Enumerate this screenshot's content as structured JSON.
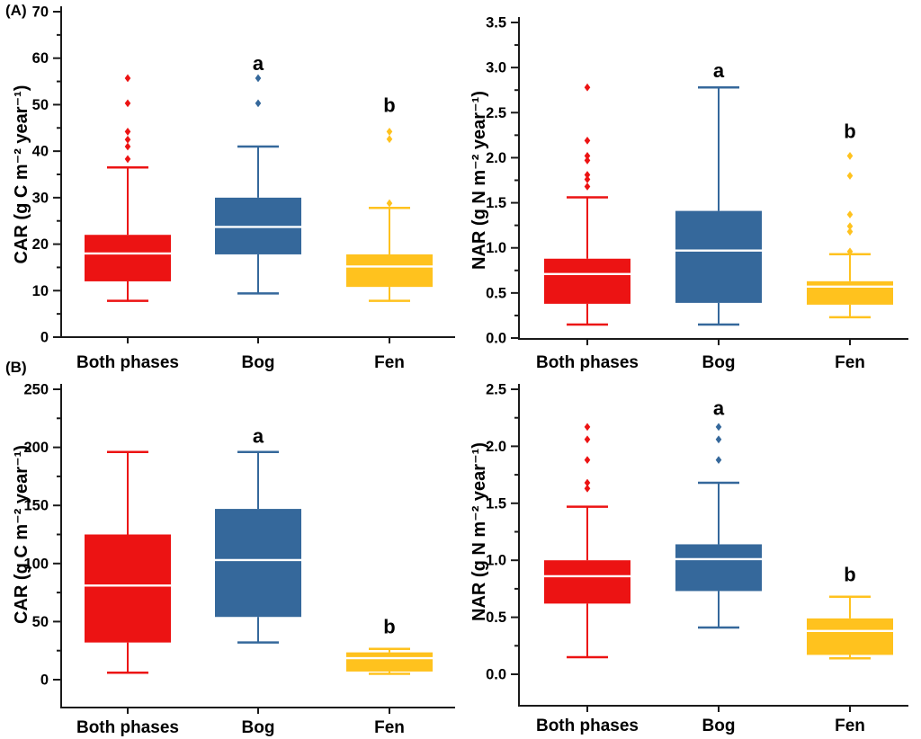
{
  "figure": {
    "background": "#ffffff",
    "text_color": "#000000",
    "axis_color": "#1a1a1a",
    "median_line_color": "#ffffff",
    "panel_labels": [
      "(A)",
      "(B)"
    ]
  },
  "chart_data": [
    {
      "id": "car-upper",
      "panel": "(A)",
      "type": "box",
      "ylabel": "CAR (g C m⁻² year⁻¹)",
      "ylim": [
        0,
        70
      ],
      "yticks": [
        "0",
        "10",
        "20",
        "30",
        "40",
        "50",
        "60",
        "70"
      ],
      "categories": [
        "Both phases",
        "Bog",
        "Fen"
      ],
      "grid": false,
      "legend": "none",
      "series": [
        {
          "name": "Both phases",
          "color": "#EC1313",
          "whisker_low": 7.8,
          "q1": 12,
          "median": 18,
          "q3": 22,
          "whisker_high": 36.5,
          "outliers": [
            38.3,
            41,
            42.5,
            44.2,
            50.3,
            55.7
          ],
          "letter": "",
          "letter_y": null
        },
        {
          "name": "Bog",
          "color": "#35689B",
          "whisker_low": 9.4,
          "q1": 17.8,
          "median": 23.7,
          "q3": 30,
          "whisker_high": 41,
          "outliers": [
            50.3,
            55.7
          ],
          "letter": "a",
          "letter_y": 59
        },
        {
          "name": "Fen",
          "color": "#FFC21E",
          "whisker_low": 7.8,
          "q1": 10.8,
          "median": 15.2,
          "q3": 17.8,
          "whisker_high": 27.8,
          "outliers": [
            28.8,
            42.6,
            44.2
          ],
          "letter": "b",
          "letter_y": 50
        }
      ]
    },
    {
      "id": "nar-upper",
      "panel": "(A)",
      "type": "box",
      "ylabel": "NAR (g N m⁻² year⁻¹)",
      "ylim": [
        0,
        3.5
      ],
      "yticks": [
        "0.0",
        "0.5",
        "1.0",
        "1.5",
        "2.0",
        "2.5",
        "3.0",
        "3.5"
      ],
      "categories": [
        "Both phases",
        "Bog",
        "Fen"
      ],
      "grid": false,
      "legend": "none",
      "series": [
        {
          "name": "Both phases",
          "color": "#EC1313",
          "whisker_low": 0.15,
          "q1": 0.38,
          "median": 0.71,
          "q3": 0.88,
          "whisker_high": 1.56,
          "outliers": [
            1.68,
            1.76,
            1.81,
            1.97,
            2.02,
            2.19,
            2.78
          ],
          "letter": "",
          "letter_y": null
        },
        {
          "name": "Bog",
          "color": "#35689B",
          "whisker_low": 0.15,
          "q1": 0.39,
          "median": 0.97,
          "q3": 1.41,
          "whisker_high": 2.78,
          "outliers": [],
          "letter": "a",
          "letter_y": 2.97
        },
        {
          "name": "Fen",
          "color": "#FFC21E",
          "whisker_low": 0.23,
          "q1": 0.37,
          "median": 0.57,
          "q3": 0.63,
          "whisker_high": 0.93,
          "outliers": [
            0.96,
            1.18,
            1.24,
            1.37,
            1.8,
            2.02
          ],
          "letter": "b",
          "letter_y": 2.3
        }
      ]
    },
    {
      "id": "car-lower",
      "panel": "(B)",
      "type": "box",
      "ylabel": "CAR (g C m⁻² year⁻¹)",
      "ylim": [
        0,
        250
      ],
      "yticks": [
        "0",
        "50",
        "100",
        "150",
        "200",
        "250"
      ],
      "categories": [
        "Both phases",
        "Bog",
        "Fen"
      ],
      "grid": false,
      "legend": "none",
      "series": [
        {
          "name": "Both phases",
          "color": "#EC1313",
          "whisker_low": 6,
          "q1": 32,
          "median": 81,
          "q3": 125,
          "whisker_high": 196,
          "outliers": [],
          "letter": "",
          "letter_y": null
        },
        {
          "name": "Bog",
          "color": "#35689B",
          "whisker_low": 32,
          "q1": 54,
          "median": 103,
          "q3": 147,
          "whisker_high": 196,
          "outliers": [],
          "letter": "a",
          "letter_y": 210
        },
        {
          "name": "Fen",
          "color": "#FFC21E",
          "whisker_low": 5,
          "q1": 7,
          "median": 18.5,
          "q3": 23.5,
          "whisker_high": 26.5,
          "outliers": [],
          "letter": "b",
          "letter_y": 46
        }
      ]
    },
    {
      "id": "nar-lower",
      "panel": "(B)",
      "type": "box",
      "ylabel": "NAR (g N m⁻² year⁻¹)",
      "ylim": [
        0,
        2.5
      ],
      "yticks": [
        "0.0",
        "0.5",
        "1.0",
        "1.5",
        "2.0",
        "2.5"
      ],
      "categories": [
        "Both phases",
        "Bog",
        "Fen"
      ],
      "grid": false,
      "legend": "none",
      "series": [
        {
          "name": "Both phases",
          "color": "#EC1313",
          "whisker_low": 0.15,
          "q1": 0.62,
          "median": 0.86,
          "q3": 1.0,
          "whisker_high": 1.47,
          "outliers": [
            1.63,
            1.68,
            1.88,
            2.06,
            2.17
          ],
          "letter": "",
          "letter_y": null
        },
        {
          "name": "Bog",
          "color": "#35689B",
          "whisker_low": 0.41,
          "q1": 0.73,
          "median": 1.01,
          "q3": 1.14,
          "whisker_high": 1.68,
          "outliers": [
            1.88,
            2.06,
            2.17
          ],
          "letter": "a",
          "letter_y": 2.34
        },
        {
          "name": "Fen",
          "color": "#FFC21E",
          "whisker_low": 0.14,
          "q1": 0.17,
          "median": 0.38,
          "q3": 0.49,
          "whisker_high": 0.68,
          "outliers": [],
          "letter": "b",
          "letter_y": 0.88
        }
      ]
    }
  ]
}
